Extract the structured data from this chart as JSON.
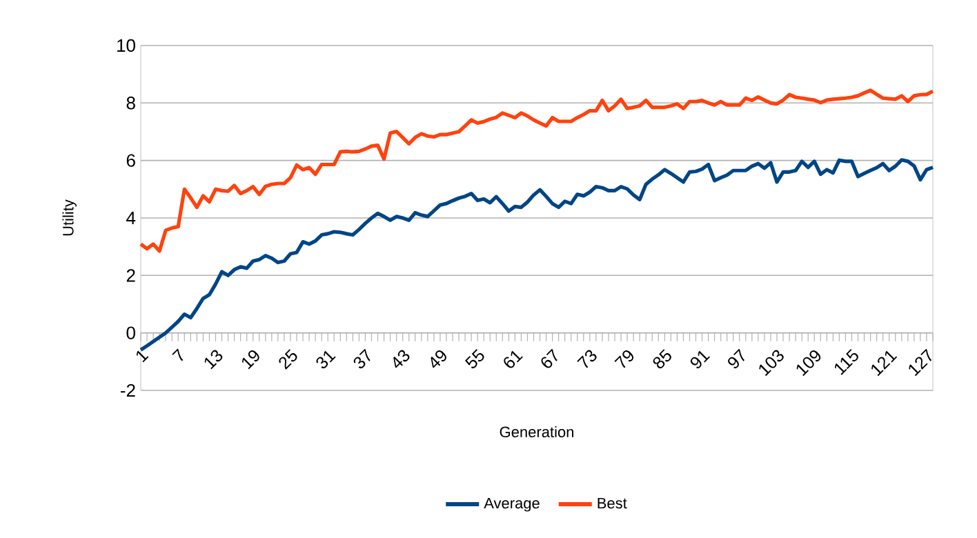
{
  "chart_data": {
    "type": "line",
    "xlabel": "Generation",
    "ylabel": "Utility",
    "categories": [
      "1",
      null,
      null,
      null,
      null,
      null,
      "7",
      null,
      null,
      null,
      null,
      null,
      "13",
      null,
      null,
      null,
      null,
      null,
      "19",
      null,
      null,
      null,
      null,
      null,
      "25",
      null,
      null,
      null,
      null,
      null,
      "31",
      null,
      null,
      null,
      null,
      null,
      "37",
      null,
      null,
      null,
      null,
      null,
      "43",
      null,
      null,
      null,
      null,
      null,
      "49",
      null,
      null,
      null,
      null,
      null,
      "55",
      null,
      null,
      null,
      null,
      null,
      "61",
      null,
      null,
      null,
      null,
      null,
      "67",
      null,
      null,
      null,
      null,
      null,
      "73",
      null,
      null,
      null,
      null,
      null,
      "79",
      null,
      null,
      null,
      null,
      null,
      "85",
      null,
      null,
      null,
      null,
      null,
      "91",
      null,
      null,
      null,
      null,
      null,
      "97",
      null,
      null,
      null,
      null,
      null,
      "103",
      null,
      null,
      null,
      null,
      null,
      "109",
      null,
      null,
      null,
      null,
      null,
      "115",
      null,
      null,
      null,
      null,
      null,
      "121",
      null,
      null,
      null,
      null,
      null,
      "127",
      null
    ],
    "series": [
      {
        "name": "Average",
        "color": "#004586",
        "values": [
          -0.59,
          -0.45,
          -0.3,
          -0.15,
          0.0,
          0.2,
          0.4,
          0.65,
          0.53,
          0.85,
          1.2,
          1.33,
          1.7,
          2.13,
          2.0,
          2.2,
          2.3,
          2.25,
          2.5,
          2.55,
          2.69,
          2.6,
          2.45,
          2.5,
          2.75,
          2.8,
          3.17,
          3.09,
          3.2,
          3.41,
          3.45,
          3.52,
          3.5,
          3.45,
          3.41,
          3.6,
          3.81,
          4.0,
          4.16,
          4.05,
          3.92,
          4.05,
          4.0,
          3.92,
          4.18,
          4.1,
          4.05,
          4.25,
          4.45,
          4.5,
          4.6,
          4.69,
          4.75,
          4.85,
          4.61,
          4.66,
          4.53,
          4.74,
          4.5,
          4.24,
          4.4,
          4.37,
          4.55,
          4.8,
          4.98,
          4.75,
          4.5,
          4.37,
          4.58,
          4.5,
          4.82,
          4.77,
          4.9,
          5.09,
          5.05,
          4.95,
          4.95,
          5.09,
          5.01,
          4.8,
          4.64,
          5.17,
          5.35,
          5.5,
          5.68,
          5.55,
          5.4,
          5.25,
          5.6,
          5.62,
          5.7,
          5.86,
          5.3,
          5.4,
          5.49,
          5.65,
          5.65,
          5.65,
          5.8,
          5.89,
          5.73,
          5.92,
          5.25,
          5.6,
          5.6,
          5.65,
          5.97,
          5.76,
          5.97,
          5.52,
          5.68,
          5.57,
          6.01,
          5.97,
          5.97,
          5.44,
          5.55,
          5.65,
          5.75,
          5.89,
          5.65,
          5.8,
          6.02,
          5.97,
          5.81,
          5.33,
          5.68,
          5.76
        ]
      },
      {
        "name": "Best",
        "color": "#ff420e",
        "values": [
          3.09,
          2.93,
          3.09,
          2.85,
          3.57,
          3.65,
          3.7,
          5.0,
          4.7,
          4.37,
          4.77,
          4.56,
          5.0,
          4.95,
          4.93,
          5.13,
          4.85,
          4.95,
          5.09,
          4.82,
          5.1,
          5.17,
          5.2,
          5.2,
          5.4,
          5.84,
          5.68,
          5.75,
          5.52,
          5.86,
          5.86,
          5.86,
          6.3,
          6.32,
          6.3,
          6.32,
          6.4,
          6.5,
          6.53,
          6.05,
          6.95,
          7.01,
          6.8,
          6.58,
          6.8,
          6.93,
          6.85,
          6.82,
          6.9,
          6.9,
          6.95,
          7.0,
          7.2,
          7.41,
          7.3,
          7.35,
          7.44,
          7.5,
          7.65,
          7.57,
          7.49,
          7.65,
          7.55,
          7.41,
          7.3,
          7.2,
          7.49,
          7.36,
          7.36,
          7.36,
          7.49,
          7.6,
          7.73,
          7.73,
          8.09,
          7.73,
          7.9,
          8.13,
          7.81,
          7.85,
          7.9,
          8.09,
          7.85,
          7.85,
          7.85,
          7.9,
          7.97,
          7.81,
          8.05,
          8.05,
          8.09,
          8.0,
          7.93,
          8.05,
          7.93,
          7.93,
          7.93,
          8.17,
          8.09,
          8.21,
          8.1,
          8.0,
          7.97,
          8.1,
          8.29,
          8.2,
          8.17,
          8.13,
          8.1,
          8.01,
          8.1,
          8.13,
          8.15,
          8.17,
          8.2,
          8.25,
          8.35,
          8.44,
          8.3,
          8.17,
          8.15,
          8.13,
          8.25,
          8.05,
          8.25,
          8.29,
          8.3,
          8.41
        ]
      }
    ],
    "ylim": [
      -2,
      10
    ],
    "yticks": [
      -2,
      0,
      2,
      4,
      6,
      8,
      10
    ],
    "grid": "y",
    "legend": "bottom",
    "marker": "none",
    "line_style": "solid"
  }
}
